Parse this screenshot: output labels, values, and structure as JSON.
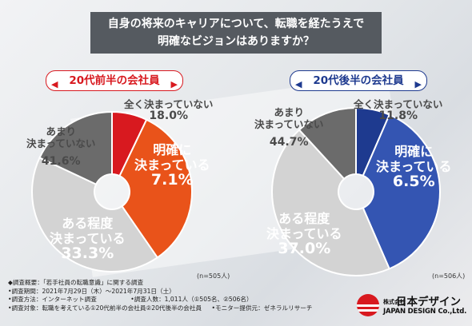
{
  "title": {
    "line1": "自身の将来のキャリアについて、転職を経たうえで",
    "line2": "明確なビジョンはありますか？"
  },
  "colors": {
    "red": "#d8191f",
    "orange": "#e9531a",
    "dark_gray": "#6b6b6b",
    "light_gray": "#d3d3d3",
    "navy": "#1e3a8f",
    "blue": "#3455b2",
    "title_bg": "#555a60"
  },
  "chart_data": [
    {
      "type": "pie",
      "variant": "donut",
      "group_label": "20代前半の会社員",
      "n_label": "(n=505人)",
      "slices": [
        {
          "label": "明確に決まっている",
          "value": 7.1
        },
        {
          "label": "ある程度決まっている",
          "value": 33.3
        },
        {
          "label": "あまり決まっていない",
          "value": 41.6
        },
        {
          "label": "全く決まっていない",
          "value": 18.0
        }
      ],
      "display": {
        "s0": {
          "t1": "明確に",
          "t2": "決まっている",
          "v": "7.1%"
        },
        "s1": {
          "t1": "ある程度",
          "t2": "決まっている",
          "v": "33.3%"
        },
        "s2": {
          "t1": "あまり",
          "t2": "決まっていない",
          "v": "41.6%"
        },
        "s3": {
          "t1": "全く決まっていない",
          "v": "18.0%"
        }
      }
    },
    {
      "type": "pie",
      "variant": "donut",
      "group_label": "20代後半の会社員",
      "n_label": "(n=506人)",
      "slices": [
        {
          "label": "明確に決まっている",
          "value": 6.5
        },
        {
          "label": "ある程度決まっている",
          "value": 37.0
        },
        {
          "label": "あまり決まっていない",
          "value": 44.7
        },
        {
          "label": "全く決まっていない",
          "value": 11.8
        }
      ],
      "display": {
        "s0": {
          "t1": "明確に",
          "t2": "決まっている",
          "v": "6.5%"
        },
        "s1": {
          "t1": "ある程度",
          "t2": "決まっている",
          "v": "37.0%"
        },
        "s2": {
          "t1": "あまり",
          "t2": "決まっていない",
          "v": "44.7%"
        },
        "s3": {
          "t1": "全く決まっていない",
          "v": "11.8%"
        }
      }
    }
  ],
  "footer": {
    "line1": "◆調査概要：「若手社員の転職意識」に関する調査",
    "line2": "•調査期間：2021年7月29日（木）～2021年7月31日（土）",
    "line3a": "•調査方法：インターネット調査",
    "line3b": "•調査人数：1,011人（①505名、②506名）",
    "line4a": "•調査対象：転職を考えている①20代前半の会社員②20代後半の会社員",
    "line4b": "•モニター提供元：ゼネラルリサーチ"
  },
  "logo": {
    "jp_small": "株式会社",
    "jp": "日本デザイン",
    "en": "JAPAN DESIGN Co.,Ltd."
  }
}
